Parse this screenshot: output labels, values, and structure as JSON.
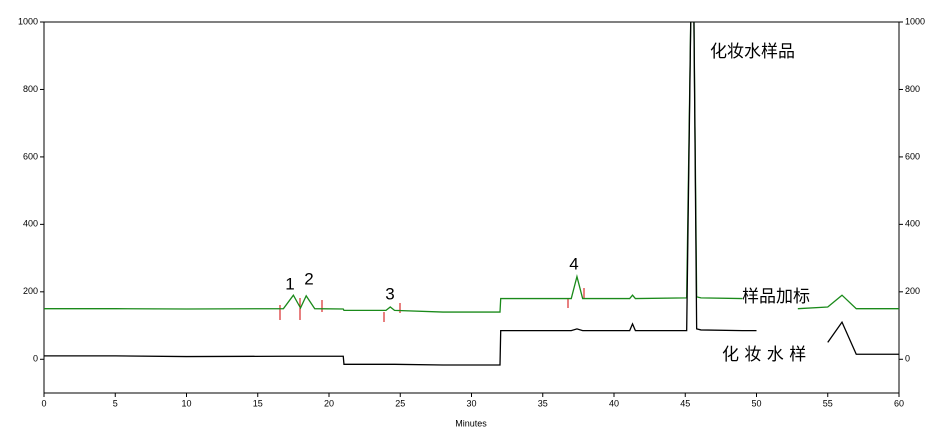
{
  "chart_data": {
    "type": "line",
    "xlabel": "Minutes",
    "x": [
      0,
      5,
      10,
      16.8,
      17.5,
      18.0,
      18.4,
      19.0,
      21.0,
      21.05,
      24.0,
      24.3,
      24.6,
      28.0,
      32.0,
      32.05,
      37.0,
      37.4,
      37.8,
      41.1,
      41.3,
      41.5,
      45.1,
      45.4,
      45.6,
      45.8,
      46.1,
      49.0,
      50.0,
      52.9,
      55.0,
      56.0,
      57.0,
      60
    ],
    "series": [
      {
        "name": "样品加标",
        "color": "#1a8a1a",
        "values": [
          150,
          150,
          149,
          150,
          190,
          152,
          188,
          150,
          149,
          145,
          145,
          155,
          145,
          140,
          140,
          180,
          180,
          245,
          180,
          180,
          190,
          180,
          182,
          1050,
          1050,
          185,
          182,
          180,
          null,
          150,
          155,
          190,
          150,
          150
        ]
      },
      {
        "name": "化 妆 水 样",
        "color": "#000000",
        "values": [
          10,
          10,
          8,
          9,
          9,
          9,
          9,
          9,
          9,
          -15,
          -15,
          -15,
          -15,
          -17,
          -17,
          85,
          85,
          90,
          85,
          85,
          105,
          85,
          85,
          1050,
          1050,
          90,
          87,
          85,
          85,
          null,
          50,
          110,
          15,
          15
        ]
      }
    ],
    "annotations": [
      "1",
      "2",
      "3",
      "4",
      "化妆水样品"
    ],
    "xlim": [
      0,
      60
    ],
    "xticks": [
      0,
      5,
      10,
      15,
      20,
      25,
      30,
      35,
      40,
      45,
      50,
      55,
      60
    ],
    "ylim": [
      -100,
      1000
    ],
    "yticks": [
      0,
      200,
      400,
      600,
      800,
      1000
    ],
    "y2lim": [
      -100,
      1000
    ],
    "y2ticks": [
      0,
      200,
      400,
      600,
      800,
      1000
    ]
  }
}
